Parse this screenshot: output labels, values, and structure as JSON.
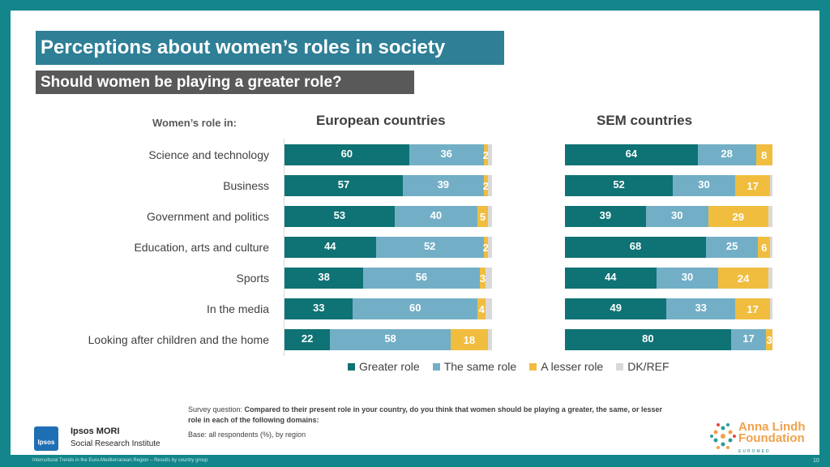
{
  "title": "Perceptions about women’s roles in society",
  "subtitle": "Should women be playing a greater role?",
  "role_header": "Women’s role in:",
  "colors": {
    "greater": "#0f7274",
    "same": "#72afc6",
    "lesser": "#f0bd3f",
    "dk": "#d9d9d9",
    "frame": "#12868a"
  },
  "chart_data": {
    "type": "bar",
    "stacked": true,
    "orientation": "horizontal",
    "categories": [
      "Science and technology",
      "Business",
      "Government and politics",
      "Education, arts and culture",
      "Sports",
      "In the media",
      "Looking after children and the home"
    ],
    "legend": [
      "Greater role",
      "The same role",
      "A lesser role",
      "DK/REF"
    ],
    "panels": [
      {
        "title": "European countries",
        "series": [
          {
            "name": "Greater role",
            "values": [
              60,
              57,
              53,
              44,
              38,
              33,
              22
            ]
          },
          {
            "name": "The same role",
            "values": [
              36,
              39,
              40,
              52,
              56,
              60,
              58
            ]
          },
          {
            "name": "A lesser role",
            "values": [
              2,
              2,
              5,
              2,
              3,
              4,
              18
            ]
          },
          {
            "name": "DK/REF",
            "values": [
              2,
              2,
              2,
              2,
              3,
              3,
              2
            ]
          }
        ]
      },
      {
        "title": "SEM countries",
        "series": [
          {
            "name": "Greater role",
            "values": [
              64,
              52,
              39,
              68,
              44,
              49,
              80
            ]
          },
          {
            "name": "The same role",
            "values": [
              28,
              30,
              30,
              25,
              30,
              33,
              17
            ]
          },
          {
            "name": "A lesser role",
            "values": [
              8,
              17,
              29,
              6,
              24,
              17,
              3
            ]
          },
          {
            "name": "DK/REF",
            "values": [
              0,
              1,
              2,
              1,
              2,
              1,
              0
            ]
          }
        ]
      }
    ]
  },
  "question_prefix": "Survey question: ",
  "question_text": "Compared to their present role in your country, do you think that women should be playing a greater, the same, or lesser role in each of the following domains:",
  "base": "Base: all respondents (%), by region",
  "ipsos": {
    "logo_text": "Ipsos",
    "title": "Ipsos MORI",
    "subtitle": "Social Research Institute"
  },
  "alf": {
    "line1": "Anna Lindh",
    "line2": "Foundation",
    "small": "EUROMED"
  },
  "footer": "Intercultural Trends in the Euro-Mediterranean Region – Results by country group",
  "page_number": "10"
}
